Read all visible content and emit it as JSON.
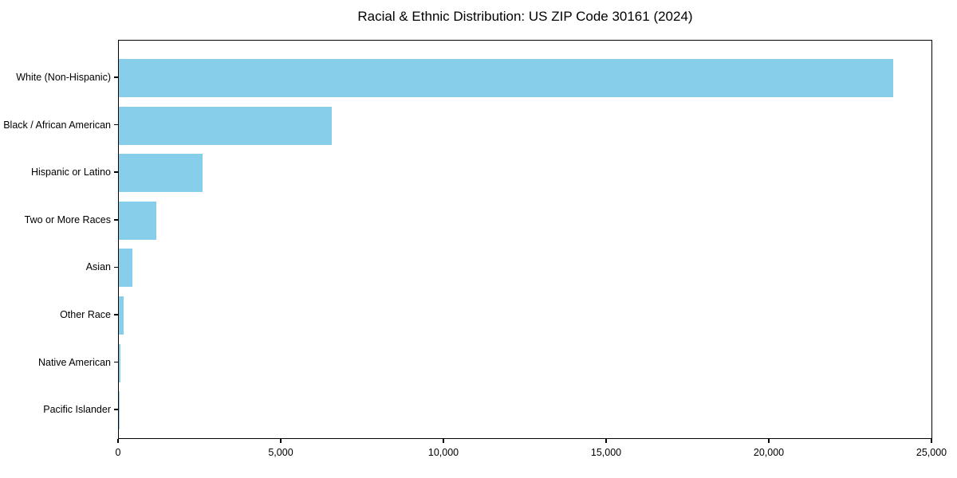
{
  "chart_data": {
    "type": "bar",
    "orientation": "horizontal",
    "title": "Racial & Ethnic Distribution: US ZIP Code 30161 (2024)",
    "categories": [
      "White (Non-Hispanic)",
      "Black / African American",
      "Hispanic or Latino",
      "Two or More Races",
      "Asian",
      "Other Race",
      "Native American",
      "Pacific Islander"
    ],
    "values": [
      23800,
      6550,
      2570,
      1150,
      420,
      150,
      40,
      10
    ],
    "xlabel": "",
    "ylabel": "",
    "xlim": [
      0,
      25000
    ],
    "x_ticks": [
      0,
      5000,
      10000,
      15000,
      20000,
      25000
    ],
    "x_tick_labels": [
      "0",
      "5,000",
      "10,000",
      "15,000",
      "20,000",
      "25,000"
    ],
    "bar_color": "#87CEEB",
    "text_color": "#000000",
    "grid": false,
    "legend": false
  }
}
